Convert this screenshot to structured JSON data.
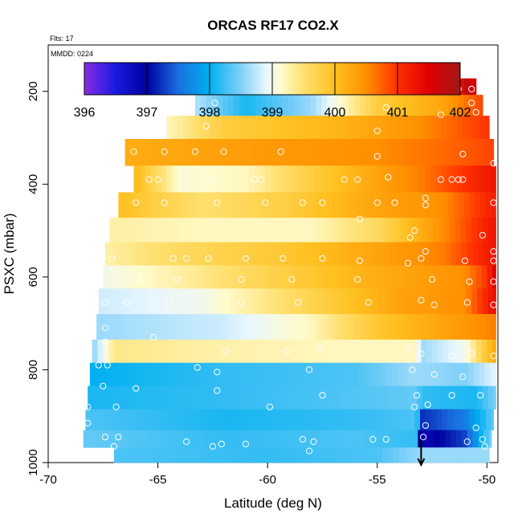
{
  "chart_data": {
    "type": "heatmap",
    "title": "ORCAS RF17 CO2.X",
    "flight_note": "Flts: 17",
    "date_note": "MMDD: 0224",
    "xlabel": "Latitude (deg N)",
    "ylabel": "PSXC (mbar)",
    "xlim": [
      -70,
      -49.5
    ],
    "ylim": [
      1000,
      100
    ],
    "y_inverted": true,
    "grid": false,
    "x_ticks": [
      "-70",
      "-65",
      "-60",
      "-55",
      "-50"
    ],
    "x_tick_values": [
      -70,
      -65,
      -60,
      -55,
      -50
    ],
    "y_ticks": [
      "200",
      "400",
      "600",
      "800",
      "1000"
    ],
    "y_tick_values": [
      200,
      400,
      600,
      800,
      1000
    ],
    "colorbar": {
      "ticks": [
        "396",
        "397",
        "398",
        "399",
        "400",
        "401",
        "402"
      ],
      "tick_values": [
        396,
        397,
        398,
        399,
        400,
        401,
        402
      ],
      "range": [
        396,
        402
      ],
      "stops": [
        {
          "v": 396.0,
          "color": "#8a2be2"
        },
        {
          "v": 396.5,
          "color": "#1a1ae0"
        },
        {
          "v": 397.0,
          "color": "#0000a0"
        },
        {
          "v": 397.5,
          "color": "#1a6fe0"
        },
        {
          "v": 398.0,
          "color": "#00b0f0"
        },
        {
          "v": 398.5,
          "color": "#7fd0f8"
        },
        {
          "v": 398.9,
          "color": "#e8f6ff"
        },
        {
          "v": 399.15,
          "color": "#fffbcc"
        },
        {
          "v": 399.5,
          "color": "#ffe070"
        },
        {
          "v": 400.0,
          "color": "#ffc020"
        },
        {
          "v": 400.5,
          "color": "#ff9000"
        },
        {
          "v": 401.0,
          "color": "#ff3000"
        },
        {
          "v": 401.5,
          "color": "#e00000"
        },
        {
          "v": 402.0,
          "color": "#a01818"
        }
      ]
    },
    "layers": [
      {
        "p": 185,
        "lat0": -62.3,
        "lat1": -50.5,
        "knots": [
          [
            -62.3,
            398.3
          ],
          [
            -56,
            398.2
          ],
          [
            -54,
            399.6
          ],
          [
            -51.5,
            400.6
          ],
          [
            -51,
            401.8
          ],
          [
            -50.5,
            401.5
          ]
        ]
      },
      {
        "p": 230,
        "lat0": -63.3,
        "lat1": -50.2,
        "knots": [
          [
            -63.3,
            398.7
          ],
          [
            -61,
            398.1
          ],
          [
            -58,
            398.6
          ],
          [
            -55,
            399.8
          ],
          [
            -52,
            400.3
          ],
          [
            -50.2,
            400.9
          ]
        ]
      },
      {
        "p": 275,
        "lat0": -64.6,
        "lat1": -49.9,
        "knots": [
          [
            -64.6,
            399.2
          ],
          [
            -62,
            399.8
          ],
          [
            -57,
            400.1
          ],
          [
            -53,
            400.5
          ],
          [
            -49.9,
            401.0
          ]
        ]
      },
      {
        "p": 330,
        "lat0": -66.5,
        "lat1": -49.7,
        "knots": [
          [
            -66.5,
            400.2
          ],
          [
            -60,
            400.4
          ],
          [
            -55,
            400.5
          ],
          [
            -52,
            400.7
          ],
          [
            -49.7,
            400.9
          ]
        ]
      },
      {
        "p": 390,
        "lat0": -66.1,
        "lat1": -49.6,
        "knots": [
          [
            -66.1,
            400.1
          ],
          [
            -64,
            399.1
          ],
          [
            -61,
            399.2
          ],
          [
            -58,
            399.8
          ],
          [
            -55,
            400.3
          ],
          [
            -53,
            400.6
          ],
          [
            -49.6,
            401.3
          ]
        ]
      },
      {
        "p": 445,
        "lat0": -66.8,
        "lat1": -49.6,
        "knots": [
          [
            -66.8,
            400.0
          ],
          [
            -63,
            399.5
          ],
          [
            -59,
            399.8
          ],
          [
            -55,
            400.3
          ],
          [
            -52,
            400.5
          ],
          [
            -49.6,
            401.2
          ]
        ]
      },
      {
        "p": 500,
        "lat0": -67.2,
        "lat1": -49.6,
        "knots": [
          [
            -67.2,
            399.3
          ],
          [
            -63,
            399.2
          ],
          [
            -58,
            399.2
          ],
          [
            -55,
            399.6
          ],
          [
            -52,
            400.5
          ],
          [
            -49.6,
            401.3
          ]
        ]
      },
      {
        "p": 550,
        "lat0": -67.4,
        "lat1": -49.6,
        "knots": [
          [
            -67.4,
            399.3
          ],
          [
            -64,
            399.6
          ],
          [
            -59,
            399.9
          ],
          [
            -55,
            400.3
          ],
          [
            -52,
            400.6
          ],
          [
            -49.6,
            401.3
          ]
        ]
      },
      {
        "p": 600,
        "lat0": -67.5,
        "lat1": -49.6,
        "knots": [
          [
            -67.5,
            399.0
          ],
          [
            -64,
            399.3
          ],
          [
            -59,
            399.8
          ],
          [
            -55,
            400.2
          ],
          [
            -51,
            400.5
          ],
          [
            -50,
            401.0
          ],
          [
            -49.6,
            401.6
          ]
        ]
      },
      {
        "p": 650,
        "lat0": -67.7,
        "lat1": -49.6,
        "knots": [
          [
            -67.7,
            398.8
          ],
          [
            -63,
            399.0
          ],
          [
            -58,
            399.7
          ],
          [
            -54,
            400.3
          ],
          [
            -51,
            400.5
          ],
          [
            -49.6,
            401.4
          ]
        ]
      },
      {
        "p": 710,
        "lat0": -67.8,
        "lat1": -49.6,
        "knots": [
          [
            -67.8,
            398.6
          ],
          [
            -62,
            398.8
          ],
          [
            -58,
            399.2
          ],
          [
            -55,
            399.9
          ],
          [
            -52,
            400.3
          ],
          [
            -49.6,
            400.6
          ]
        ]
      },
      {
        "p": 760,
        "lat0": -68.0,
        "lat1": -49.6,
        "knots": [
          [
            -68.0,
            398.5
          ],
          [
            -67,
            399.4
          ],
          [
            -63,
            399.3
          ],
          [
            -57,
            399.2
          ],
          [
            -53.2,
            399.2
          ],
          [
            -53,
            398.6
          ],
          [
            -51,
            399.0
          ],
          [
            -49.6,
            400.3
          ]
        ]
      },
      {
        "p": 810,
        "lat0": -68.1,
        "lat1": -49.6,
        "knots": [
          [
            -68.1,
            398.0
          ],
          [
            -62,
            398.2
          ],
          [
            -56,
            398.3
          ],
          [
            -53.5,
            398.6
          ],
          [
            -53,
            398.6
          ],
          [
            -51,
            398.5
          ],
          [
            -49.6,
            398.9
          ]
        ]
      },
      {
        "p": 860,
        "lat0": -68.2,
        "lat1": -49.6,
        "knots": [
          [
            -68.2,
            398.1
          ],
          [
            -62,
            398.2
          ],
          [
            -57,
            398.3
          ],
          [
            -53.2,
            398.4
          ],
          [
            -53,
            398.2
          ],
          [
            -50.5,
            398.1
          ],
          [
            -49.6,
            398.5
          ]
        ]
      },
      {
        "p": 910,
        "lat0": -68.3,
        "lat1": -49.7,
        "knots": [
          [
            -68.3,
            398.3
          ],
          [
            -62,
            398.1
          ],
          [
            -56,
            398.2
          ],
          [
            -53.2,
            398.3
          ],
          [
            -53,
            397.2
          ],
          [
            -51,
            397.6
          ],
          [
            -49.7,
            398.4
          ]
        ]
      },
      {
        "p": 950,
        "lat0": -68.4,
        "lat1": -49.8,
        "knots": [
          [
            -68.4,
            398.4
          ],
          [
            -62,
            398.2
          ],
          [
            -56,
            398.3
          ],
          [
            -53.2,
            398.2
          ],
          [
            -53,
            396.8
          ],
          [
            -51,
            397.3
          ],
          [
            -49.8,
            398.5
          ]
        ]
      },
      {
        "p": 985,
        "lat0": -67.0,
        "lat1": -49.9,
        "knots": [
          [
            -67.0,
            398.3
          ],
          [
            -60,
            398.2
          ],
          [
            -55,
            398.3
          ],
          [
            -53,
            398.6
          ],
          [
            -49.9,
            398.6
          ]
        ]
      }
    ],
    "points": [
      [
        -62.1,
        175
      ],
      [
        -61.3,
        175
      ],
      [
        -60.6,
        175
      ],
      [
        -60.1,
        175
      ],
      [
        -59.5,
        175
      ],
      [
        -58.8,
        175
      ],
      [
        -58.1,
        175
      ],
      [
        -57.4,
        175
      ],
      [
        -56.7,
        175
      ],
      [
        -56.0,
        175
      ],
      [
        -55.3,
        175
      ],
      [
        -51.9,
        190
      ],
      [
        -51.6,
        190
      ],
      [
        -51.3,
        195
      ],
      [
        -50.7,
        195
      ],
      [
        -62.4,
        225
      ],
      [
        -50.7,
        225
      ],
      [
        -50.5,
        245
      ],
      [
        -54.6,
        235
      ],
      [
        -52.1,
        250
      ],
      [
        -62.8,
        275
      ],
      [
        -55.0,
        285
      ],
      [
        -66.1,
        330
      ],
      [
        -64.7,
        330
      ],
      [
        -63.3,
        330
      ],
      [
        -62.0,
        330
      ],
      [
        -59.4,
        330
      ],
      [
        -55.0,
        340
      ],
      [
        -51.1,
        335
      ],
      [
        -49.7,
        355
      ],
      [
        -65.4,
        390
      ],
      [
        -65.0,
        390
      ],
      [
        -62.5,
        390
      ],
      [
        -60.6,
        390
      ],
      [
        -60.3,
        390
      ],
      [
        -56.5,
        390
      ],
      [
        -55.9,
        390
      ],
      [
        -54.5,
        385
      ],
      [
        -52.1,
        390
      ],
      [
        -51.6,
        390
      ],
      [
        -51.3,
        390
      ],
      [
        -51.1,
        390
      ],
      [
        -66.0,
        440
      ],
      [
        -64.7,
        440
      ],
      [
        -62.3,
        440
      ],
      [
        -60.1,
        440
      ],
      [
        -58.4,
        440
      ],
      [
        -57.5,
        440
      ],
      [
        -55.0,
        440
      ],
      [
        -54.2,
        440
      ],
      [
        -52.8,
        430
      ],
      [
        -52.8,
        445
      ],
      [
        -49.7,
        440
      ],
      [
        -55.8,
        475
      ],
      [
        -53.3,
        500
      ],
      [
        -53.5,
        515
      ],
      [
        -50.2,
        510
      ],
      [
        -49.7,
        545
      ],
      [
        -52.8,
        545
      ],
      [
        -53.0,
        560
      ],
      [
        -67.1,
        560
      ],
      [
        -64.3,
        560
      ],
      [
        -63.7,
        560
      ],
      [
        -62.7,
        560
      ],
      [
        -61.0,
        560
      ],
      [
        -59.3,
        560
      ],
      [
        -57.5,
        560
      ],
      [
        -55.8,
        565
      ],
      [
        -53.6,
        570
      ],
      [
        -51.0,
        565
      ],
      [
        -49.7,
        565
      ],
      [
        -65.9,
        605
      ],
      [
        -64.1,
        605
      ],
      [
        -61.2,
        605
      ],
      [
        -58.9,
        605
      ],
      [
        -55.9,
        605
      ],
      [
        -52.5,
        605
      ],
      [
        -50.8,
        610
      ],
      [
        -49.7,
        610
      ],
      [
        -67.4,
        655
      ],
      [
        -66.4,
        655
      ],
      [
        -64.5,
        655
      ],
      [
        -61.2,
        655
      ],
      [
        -58.6,
        655
      ],
      [
        -55.4,
        655
      ],
      [
        -53.0,
        650
      ],
      [
        -52.4,
        660
      ],
      [
        -50.9,
        655
      ],
      [
        -49.7,
        660
      ],
      [
        -67.4,
        710
      ],
      [
        -67.4,
        740
      ],
      [
        -65.2,
        730
      ],
      [
        -61.9,
        760
      ],
      [
        -59.1,
        760
      ],
      [
        -57.6,
        755
      ],
      [
        -53.6,
        755
      ],
      [
        -53.0,
        765
      ],
      [
        -51.6,
        770
      ],
      [
        -50.7,
        765
      ],
      [
        -49.7,
        770
      ],
      [
        -67.7,
        790
      ],
      [
        -67.3,
        790
      ],
      [
        -63.2,
        795
      ],
      [
        -62.3,
        805
      ],
      [
        -58.1,
        800
      ],
      [
        -53.4,
        800
      ],
      [
        -52.4,
        810
      ],
      [
        -51.1,
        815
      ],
      [
        -67.5,
        835
      ],
      [
        -66.0,
        840
      ],
      [
        -62.3,
        845
      ],
      [
        -57.5,
        855
      ],
      [
        -53.2,
        855
      ],
      [
        -51.6,
        855
      ],
      [
        -50.3,
        855
      ],
      [
        -68.2,
        880
      ],
      [
        -66.9,
        880
      ],
      [
        -59.9,
        880
      ],
      [
        -53.3,
        880
      ],
      [
        -52.7,
        875
      ],
      [
        -68.2,
        915
      ],
      [
        -52.8,
        920
      ],
      [
        -50.5,
        925
      ],
      [
        -67.4,
        945
      ],
      [
        -66.8,
        945
      ],
      [
        -63.7,
        955
      ],
      [
        -62.1,
        960
      ],
      [
        -61.0,
        960
      ],
      [
        -58.4,
        950
      ],
      [
        -57.9,
        955
      ],
      [
        -55.2,
        950
      ],
      [
        -54.6,
        950
      ],
      [
        -52.9,
        945
      ],
      [
        -50.9,
        955
      ],
      [
        -50.2,
        950
      ],
      [
        -50.1,
        965
      ],
      [
        -67.0,
        965
      ],
      [
        -62.5,
        965
      ],
      [
        -58.1,
        975
      ]
    ],
    "marker_arrow": {
      "lat": -53.0,
      "p_from": 950,
      "p_to": 1005
    }
  }
}
